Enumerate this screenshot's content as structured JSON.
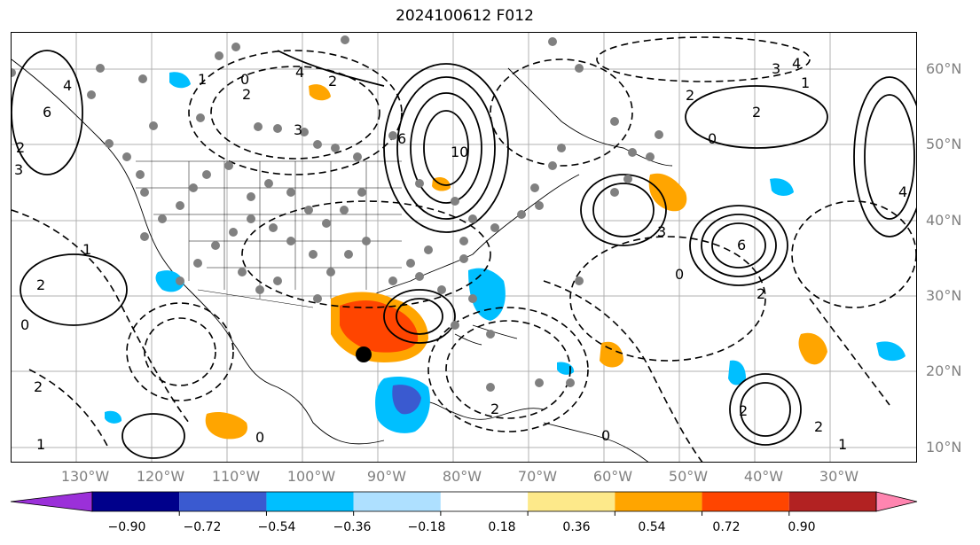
{
  "title": "2024100612 F012",
  "lat_labels": [
    "60°N",
    "50°N",
    "40°N",
    "30°N",
    "20°N",
    "10°N"
  ],
  "lon_labels": [
    "130°W",
    "120°W",
    "110°W",
    "100°W",
    "90°W",
    "80°W",
    "70°W",
    "60°W",
    "50°W",
    "40°W",
    "30°W"
  ],
  "contour_labels": [
    "6",
    "4",
    "2",
    "1",
    "0",
    "3",
    "2",
    "10",
    "2",
    "6",
    "3",
    "2",
    "4",
    "1",
    "0",
    "6",
    "4",
    "2",
    "2",
    "3",
    "1",
    "0",
    "2",
    "2",
    "0",
    "2",
    "0",
    "1",
    "2",
    "1",
    "0",
    "3",
    "4",
    "2"
  ],
  "colorbar": {
    "ticks": [
      "−0.90",
      "−0.72",
      "−0.54",
      "−0.36",
      "−0.18",
      "0.18",
      "0.36",
      "0.54",
      "0.72",
      "0.90"
    ],
    "colors": [
      "#9b30d9",
      "#00008b",
      "#3a5ad0",
      "#00bfff",
      "#aee0ff",
      "#ffffff",
      "#fde98a",
      "#ffa500",
      "#ff4500",
      "#b22222",
      "#ff85b0"
    ]
  },
  "colors": {
    "orange": "#ffa500",
    "red_orange": "#ff4500",
    "deep_sky_blue": "#00bfff",
    "royal_blue": "#3a5ad0",
    "grid": "#aaaaaa",
    "station_dot": "#808080"
  }
}
